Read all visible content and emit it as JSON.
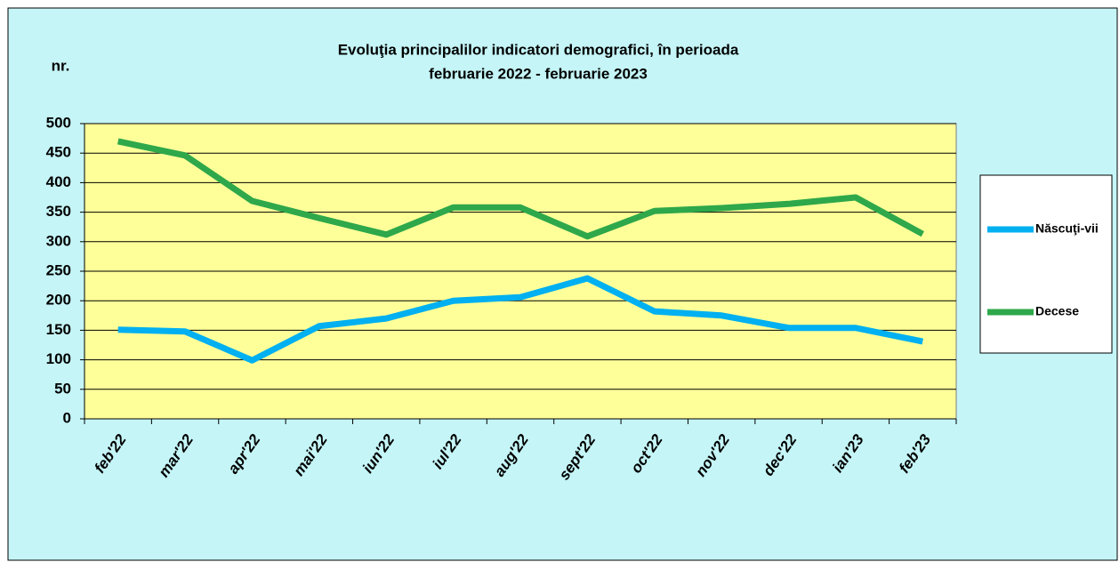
{
  "chart_data": {
    "type": "line",
    "title": [
      "Evoluţia principalilor  indicatori demografici, în perioada",
      "februarie 2022 - februarie 2023"
    ],
    "y_label": "nr.",
    "categories": [
      "feb'22",
      "mar'22",
      "apr'22",
      "mai'22",
      "iun'22",
      "iul'22",
      "aug'22",
      "sept'22",
      "oct'22",
      "nov'22",
      "dec'22",
      "ian'23",
      "feb'23"
    ],
    "series": [
      {
        "name": "Născuţi-vii",
        "color": "#00b0f0",
        "values": [
          151,
          148,
          99,
          157,
          170,
          200,
          206,
          238,
          182,
          175,
          154,
          154,
          131
        ]
      },
      {
        "name": "Decese",
        "color": "#2ea84a",
        "values": [
          470,
          446,
          369,
          340,
          312,
          358,
          358,
          309,
          352,
          357,
          364,
          375,
          313
        ]
      }
    ],
    "ylim": [
      0,
      500
    ],
    "yticks": [
      0,
      50,
      100,
      150,
      200,
      250,
      300,
      350,
      400,
      450,
      500
    ],
    "grid": true
  }
}
